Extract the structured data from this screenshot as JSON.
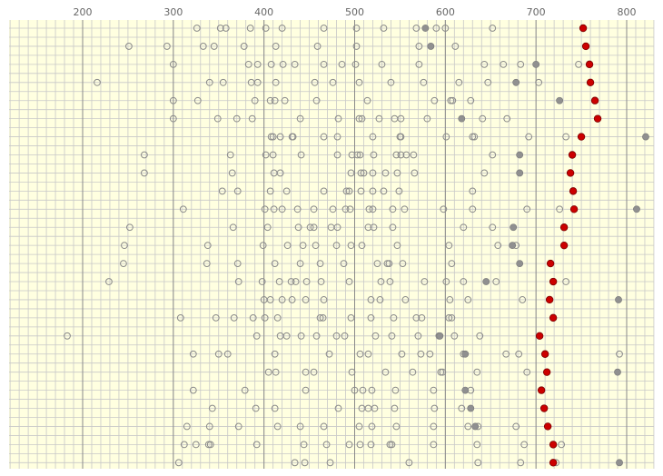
{
  "colors": {
    "page_background": "#ffffff",
    "plot_background": "#ffffe0",
    "minor_grid": "#c8c8c8",
    "major_grid": "#8a8a8a",
    "tick_label": "#666666",
    "open_marker_stroke": "#8a8a8a",
    "filled_marker": "#909090",
    "highlight_marker": "#cc0000",
    "highlight_stroke": "#7a0000"
  },
  "chart_data": {
    "type": "scatter",
    "title": "",
    "xlabel": "",
    "ylabel": "",
    "x_ticks": [
      200,
      300,
      400,
      500,
      600,
      700,
      800
    ],
    "xlim": [
      120,
      830
    ],
    "x_minor_step": 10,
    "row_count": 25,
    "grid": true,
    "legend": "none",
    "series": [
      {
        "marker": "open-circle",
        "rows": [
          [
            326,
            352,
            358,
            385,
            402,
            420,
            466,
            502,
            532,
            568,
            590,
            600,
            652
          ],
          [
            251,
            293,
            333,
            345,
            378,
            413,
            459,
            502,
            571,
            611
          ],
          [
            300,
            383,
            393,
            408,
            421,
            434,
            466,
            486,
            501,
            530,
            571,
            643,
            664,
            683,
            747
          ],
          [
            216,
            340,
            355,
            386,
            393,
            413,
            456,
            476,
            505,
            540,
            576,
            615,
            647,
            703
          ],
          [
            300,
            327,
            390,
            407,
            412,
            423,
            458,
            514,
            588,
            606,
            608,
            628
          ],
          [
            300,
            349,
            370,
            387,
            440,
            482,
            505,
            508,
            527,
            544,
            551,
            580,
            641,
            668
          ],
          [
            408,
            410,
            418,
            431,
            432,
            466,
            481,
            520,
            550,
            551,
            601,
            630,
            632,
            692,
            733
          ],
          [
            268,
            363,
            402,
            410,
            441,
            481,
            497,
            503,
            506,
            521,
            546,
            551,
            557,
            565,
            652
          ],
          [
            268,
            365,
            411,
            418,
            496,
            507,
            510,
            520,
            534,
            547,
            566,
            643
          ],
          [
            354,
            371,
            407,
            425,
            466,
            491,
            494,
            507,
            520,
            532,
            549,
            630
          ],
          [
            311,
            401,
            411,
            420,
            437,
            455,
            476,
            490,
            495,
            516,
            520,
            542,
            555,
            598,
            630,
            690,
            726
          ],
          [
            252,
            366,
            404,
            438,
            451,
            455,
            474,
            481,
            515,
            521,
            542,
            620,
            652
          ],
          [
            246,
            338,
            399,
            426,
            443,
            457,
            480,
            496,
            508,
            547,
            604,
            658,
            678
          ],
          [
            245,
            337,
            371,
            412,
            440,
            462,
            488,
            525,
            536,
            538,
            553,
            607
          ],
          [
            229,
            372,
            398,
            417,
            430,
            435,
            447,
            463,
            494,
            529,
            539,
            577,
            601,
            620,
            656,
            733
          ],
          [
            400,
            407,
            420,
            431,
            446,
            466,
            518,
            528,
            556,
            605,
            625,
            685
          ],
          [
            308,
            347,
            367,
            388,
            401,
            415,
            462,
            465,
            496,
            518,
            543,
            568,
            574,
            604,
            607
          ],
          [
            183,
            392,
            418,
            425,
            441,
            458,
            480,
            489,
            523,
            541,
            570,
            593,
            610,
            638
          ],
          [
            322,
            350,
            360,
            412,
            472,
            506,
            515,
            552,
            573,
            583,
            620,
            667,
            681,
            792
          ],
          [
            405,
            413,
            446,
            455,
            497,
            534,
            564,
            595,
            597,
            635,
            690
          ],
          [
            322,
            379,
            446,
            500,
            509,
            519,
            545,
            587,
            628
          ],
          [
            343,
            391,
            412,
            482,
            508,
            515,
            522,
            544,
            588,
            618
          ],
          [
            315,
            340,
            372,
            415,
            440,
            466,
            505,
            519,
            546,
            587,
            625,
            636,
            678
          ],
          [
            312,
            325,
            339,
            341,
            392,
            444,
            469,
            494,
            506,
            518,
            539,
            541,
            587,
            635,
            687,
            728
          ],
          [
            306,
            434,
            445,
            473,
            560,
            636,
            683,
            722
          ]
        ]
      },
      {
        "marker": "filled-gray",
        "rows": [
          [
            578
          ],
          [
            584
          ],
          [
            700
          ],
          [
            678
          ],
          [
            726
          ],
          [
            618
          ],
          [
            821
          ],
          [
            682
          ],
          [
            682
          ],
          [],
          [
            811
          ],
          [
            675
          ],
          [
            674
          ],
          [
            682
          ],
          [
            645
          ],
          [
            791
          ],
          [],
          [
            594
          ],
          [
            622
          ],
          [
            790
          ],
          [
            622
          ],
          [
            628
          ],
          [
            633
          ],
          [],
          [
            792
          ]
        ]
      },
      {
        "marker": "filled-red",
        "rows": [
          752,
          755,
          759,
          760,
          765,
          768,
          750,
          740,
          738,
          741,
          742,
          731,
          731,
          716,
          719,
          715,
          719,
          704,
          710,
          712,
          706,
          709,
          713,
          719,
          719
        ]
      }
    ]
  }
}
